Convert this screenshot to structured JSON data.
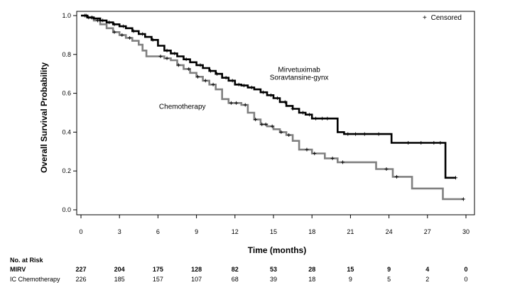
{
  "chart_data": {
    "type": "line",
    "xlabel": "Time (months)",
    "ylabel": "Overall Survival Probability",
    "xlim": [
      0,
      30
    ],
    "ylim": [
      0,
      1
    ],
    "x_ticks": [
      "0",
      "3",
      "6",
      "9",
      "12",
      "15",
      "18",
      "21",
      "24",
      "27",
      "30"
    ],
    "y_ticks": [
      "0.0",
      "0.2",
      "0.4",
      "0.6",
      "0.8",
      "1.0"
    ],
    "legend": {
      "label": "Censored",
      "marker": "+",
      "placement": "top-right"
    },
    "series": [
      {
        "name": "Mirvetuximab Soravtansine-gynx",
        "label_lines": [
          "Mirvetuximab",
          "Soravtansine-gynx"
        ],
        "color": "#000000",
        "points": [
          [
            0,
            1.0
          ],
          [
            0.5,
            0.99
          ],
          [
            1,
            0.985
          ],
          [
            1.5,
            0.975
          ],
          [
            2,
            0.965
          ],
          [
            2.5,
            0.955
          ],
          [
            3,
            0.945
          ],
          [
            3.5,
            0.935
          ],
          [
            4,
            0.92
          ],
          [
            4.5,
            0.905
          ],
          [
            5,
            0.89
          ],
          [
            5.5,
            0.875
          ],
          [
            6,
            0.845
          ],
          [
            6.5,
            0.82
          ],
          [
            7,
            0.805
          ],
          [
            7.5,
            0.79
          ],
          [
            8,
            0.775
          ],
          [
            8.5,
            0.76
          ],
          [
            9,
            0.745
          ],
          [
            9.5,
            0.73
          ],
          [
            10,
            0.715
          ],
          [
            10.5,
            0.7
          ],
          [
            11,
            0.68
          ],
          [
            11.5,
            0.665
          ],
          [
            12,
            0.645
          ],
          [
            12.5,
            0.64
          ],
          [
            13,
            0.63
          ],
          [
            13.5,
            0.62
          ],
          [
            14,
            0.605
          ],
          [
            14.5,
            0.59
          ],
          [
            15,
            0.575
          ],
          [
            15.5,
            0.555
          ],
          [
            16,
            0.535
          ],
          [
            16.5,
            0.52
          ],
          [
            17,
            0.5
          ],
          [
            17.5,
            0.49
          ],
          [
            18,
            0.47
          ],
          [
            19.5,
            0.47
          ],
          [
            20,
            0.4
          ],
          [
            20.5,
            0.39
          ],
          [
            24,
            0.39
          ],
          [
            24.2,
            0.345
          ],
          [
            28.2,
            0.345
          ],
          [
            28.4,
            0.165
          ],
          [
            29.2,
            0.165
          ]
        ],
        "censor_x": [
          0.3,
          0.6,
          0.9,
          1.7,
          2.2,
          2.6,
          3.3,
          4.1,
          4.8,
          5.6,
          6.7,
          7.3,
          8.2,
          9.3,
          10.1,
          10.6,
          11.3,
          11.8,
          12.3,
          12.7,
          13.3,
          14.2,
          14.8,
          15.3,
          15.9,
          16.5,
          17.3,
          17.8,
          18.3,
          18.8,
          19.2,
          20.8,
          21.4,
          22.1,
          23.2,
          25.5,
          26.5,
          27.5,
          28.0,
          29.2
        ]
      },
      {
        "name": "Chemotherapy",
        "label_lines": [
          "Chemotherapy"
        ],
        "color": "#808080",
        "points": [
          [
            0,
            1.0
          ],
          [
            0.5,
            0.99
          ],
          [
            1,
            0.975
          ],
          [
            1.5,
            0.955
          ],
          [
            2,
            0.935
          ],
          [
            2.5,
            0.915
          ],
          [
            3,
            0.9
          ],
          [
            3.5,
            0.885
          ],
          [
            4,
            0.87
          ],
          [
            4.5,
            0.85
          ],
          [
            4.8,
            0.82
          ],
          [
            5.1,
            0.79
          ],
          [
            6,
            0.79
          ],
          [
            6.5,
            0.78
          ],
          [
            7,
            0.77
          ],
          [
            7.5,
            0.745
          ],
          [
            8,
            0.725
          ],
          [
            8.5,
            0.705
          ],
          [
            9,
            0.685
          ],
          [
            9.5,
            0.665
          ],
          [
            10,
            0.645
          ],
          [
            10.5,
            0.62
          ],
          [
            11,
            0.57
          ],
          [
            11.5,
            0.55
          ],
          [
            12.5,
            0.54
          ],
          [
            13,
            0.5
          ],
          [
            13.5,
            0.465
          ],
          [
            14,
            0.44
          ],
          [
            14.5,
            0.43
          ],
          [
            15,
            0.415
          ],
          [
            15.5,
            0.4
          ],
          [
            16,
            0.385
          ],
          [
            16.5,
            0.355
          ],
          [
            17,
            0.31
          ],
          [
            18,
            0.29
          ],
          [
            19,
            0.265
          ],
          [
            20,
            0.245
          ],
          [
            22.5,
            0.245
          ],
          [
            23,
            0.21
          ],
          [
            24,
            0.21
          ],
          [
            24.3,
            0.17
          ],
          [
            25.5,
            0.17
          ],
          [
            25.8,
            0.11
          ],
          [
            28,
            0.11
          ],
          [
            28.2,
            0.055
          ],
          [
            29.8,
            0.055
          ]
        ],
        "censor_x": [
          0.4,
          0.8,
          1.3,
          2.6,
          3.2,
          3.8,
          6.2,
          6.7,
          7.6,
          8.4,
          9.1,
          9.7,
          10.3,
          11.7,
          12.1,
          12.8,
          13.6,
          14.1,
          14.4,
          14.9,
          15.6,
          16.2,
          17.6,
          18.2,
          19.6,
          20.4,
          23.8,
          24.6,
          29.8
        ]
      }
    ],
    "annotations": [
      {
        "text_lines": [
          "Mirvetuximab",
          "Soravtansine-gynx"
        ],
        "x": 17.0,
        "y": 0.71
      },
      {
        "text_lines": [
          "Chemotherapy"
        ],
        "x": 7.9,
        "y": 0.52
      }
    ],
    "risk_table": {
      "header": "No. at Risk",
      "time_points": [
        0,
        3,
        6,
        9,
        12,
        15,
        18,
        21,
        24,
        27,
        30
      ],
      "rows": [
        {
          "label": "MIRV",
          "values": [
            "227",
            "204",
            "175",
            "128",
            "82",
            "53",
            "28",
            "15",
            "9",
            "4",
            "0"
          ]
        },
        {
          "label": "IC Chemotherapy",
          "values": [
            "226",
            "185",
            "157",
            "107",
            "68",
            "39",
            "18",
            "9",
            "5",
            "2",
            "0"
          ]
        }
      ]
    }
  }
}
